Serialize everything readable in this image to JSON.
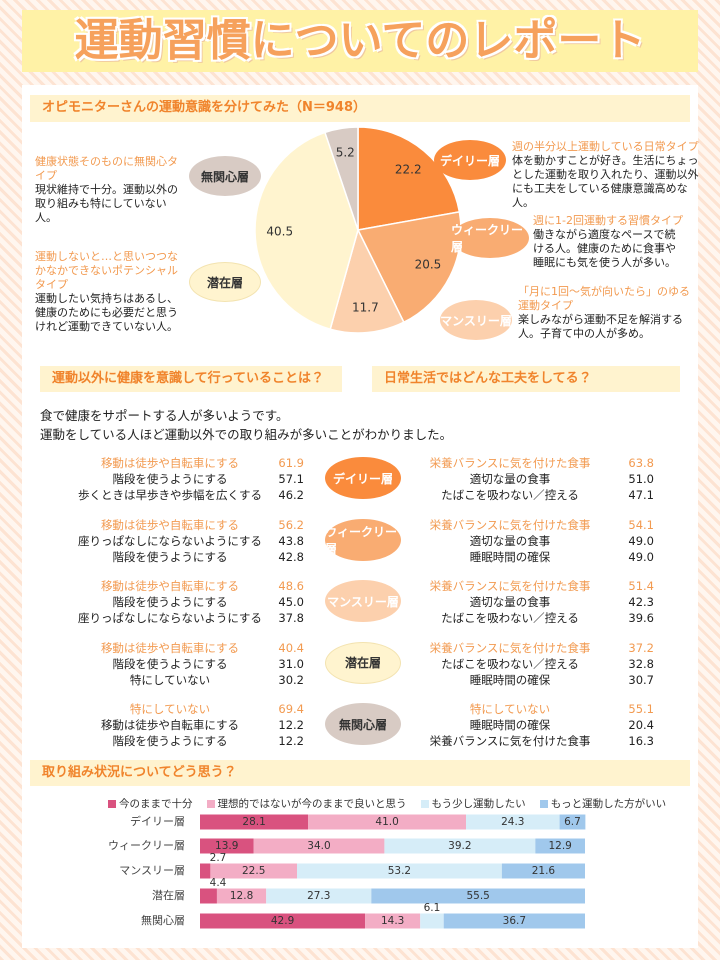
{
  "title": "運動習慣についてのレポート",
  "chart_data": [
    {
      "type": "pie",
      "title": "オピモニターさんの運動意識を分けてみた（N＝948）",
      "categories": [
        "デイリー層",
        "ウィークリー層",
        "マンスリー層",
        "潜在層",
        "無関心層"
      ],
      "values": [
        22.2,
        20.5,
        11.7,
        40.5,
        5.2
      ],
      "colors": [
        "#fa8b3c",
        "#f9ac72",
        "#fcd0ad",
        "#fff4cf",
        "#d8cbc4"
      ],
      "annotations": [
        {
          "heading": "週の半分以上運動している日常タイプ",
          "text": "体を動かすことが好き。生活にちょっとした運動を取り入れたり、運動以外にも工夫をしている健康意識高めな人。"
        },
        {
          "heading": "週に1-2回運動する習慣タイプ",
          "text": "働きながら適度なペースで続ける人。健康のために食事や睡眠にも気を使う人が多い。"
        },
        {
          "heading": "「月に1回〜気が向いたら」のゆる運動タイプ",
          "text": "楽しみながら運動不足を解消する人。子育て中の人が多め。"
        },
        {
          "heading": "運動しないと…と思いつつなかなかできないポテンシャルタイプ",
          "text": "運動したい気持ちはあるし、健康のためにも必要だと思うけれど運動できていない人。"
        },
        {
          "heading": "健康状態そのものに無関心タイプ",
          "text": "現状維持で十分。運動以外の取り組みも特にしていない人。"
        }
      ]
    },
    {
      "type": "stacked_bar",
      "title": "取り組み状況についてどう思う？",
      "categories": [
        "デイリー層",
        "ウィークリー層",
        "マンスリー層",
        "潜在層",
        "無関心層"
      ],
      "xlim": [
        0,
        100
      ],
      "series": [
        {
          "name": "今のままで十分",
          "color": "#d9527f",
          "values": [
            28.1,
            13.9,
            2.7,
            4.4,
            42.9
          ],
          "value_labels": [
            "28.1",
            "13.9",
            "2.7",
            "4.4",
            "42.9"
          ]
        },
        {
          "name": "理想的ではないが今のままで良いと思う",
          "color": "#f3adc5",
          "values": [
            41.0,
            34.0,
            22.5,
            12.8,
            14.3
          ],
          "value_labels": [
            "41.0",
            "34.0",
            "22.5",
            "12.8",
            "14.3"
          ]
        },
        {
          "name": "もう少し運動したい",
          "color": "#d6edf8",
          "values": [
            24.3,
            39.2,
            53.2,
            27.3,
            6.1
          ],
          "value_labels": [
            "24.3",
            "39.2",
            "53.2",
            "27.3",
            "6.1"
          ]
        },
        {
          "name": "もっと運動した方がいい",
          "color": "#a0c8ec",
          "values": [
            6.7,
            12.9,
            21.6,
            55.5,
            36.7
          ],
          "value_labels": [
            "6.7",
            "12.9",
            "21.6",
            "55.5",
            "36.7"
          ]
        }
      ]
    }
  ],
  "habits": {
    "left_title": "運動以外に健康を意識して行っていることは？",
    "right_title": "日常生活ではどんな工夫をしてる？",
    "intro": [
      "食で健康をサポートする人が多いようです。",
      "運動をしている人ほど運動以外での取り組みが多いことがわかりました。"
    ],
    "rows": [
      {
        "left": [
          {
            "label": "移動は徒歩や自転車にする",
            "value": "61.9"
          },
          {
            "label": "階段を使うようにする",
            "value": "57.1"
          },
          {
            "label": "歩くときは早歩きや歩幅を広くする",
            "value": "46.2"
          }
        ],
        "right": [
          {
            "label": "栄養バランスに気を付けた食事",
            "value": "63.8"
          },
          {
            "label": "適切な量の食事",
            "value": "51.0"
          },
          {
            "label": "たばこを吸わない／控える",
            "value": "47.1"
          }
        ]
      },
      {
        "left": [
          {
            "label": "移動は徒歩や自転車にする",
            "value": "56.2"
          },
          {
            "label": "座りっぱなしにならないようにする",
            "value": "43.8"
          },
          {
            "label": "階段を使うようにする",
            "value": "42.8"
          }
        ],
        "right": [
          {
            "label": "栄養バランスに気を付けた食事",
            "value": "54.1"
          },
          {
            "label": "適切な量の食事",
            "value": "49.0"
          },
          {
            "label": "睡眠時間の確保",
            "value": "49.0"
          }
        ]
      },
      {
        "left": [
          {
            "label": "移動は徒歩や自転車にする",
            "value": "48.6"
          },
          {
            "label": "階段を使うようにする",
            "value": "45.0"
          },
          {
            "label": "座りっぱなしにならないようにする",
            "value": "37.8"
          }
        ],
        "right": [
          {
            "label": "栄養バランスに気を付けた食事",
            "value": "51.4"
          },
          {
            "label": "適切な量の食事",
            "value": "42.3"
          },
          {
            "label": "たばこを吸わない／控える",
            "value": "39.6"
          }
        ]
      },
      {
        "left": [
          {
            "label": "移動は徒歩や自転車にする",
            "value": "40.4"
          },
          {
            "label": "階段を使うようにする",
            "value": "31.0"
          },
          {
            "label": "特にしていない",
            "value": "30.2"
          }
        ],
        "right": [
          {
            "label": "栄養バランスに気を付けた食事",
            "value": "37.2"
          },
          {
            "label": "たばこを吸わない／控える",
            "value": "32.8"
          },
          {
            "label": "睡眠時間の確保",
            "value": "30.7"
          }
        ]
      },
      {
        "left": [
          {
            "label": "特にしていない",
            "value": "69.4"
          },
          {
            "label": "移動は徒歩や自転車にする",
            "value": "12.2"
          },
          {
            "label": "階段を使うようにする",
            "value": "12.2"
          }
        ],
        "right": [
          {
            "label": "特にしていない",
            "value": "55.1"
          },
          {
            "label": "睡眠時間の確保",
            "value": "20.4"
          },
          {
            "label": "栄養バランスに気を付けた食事",
            "value": "16.3"
          }
        ]
      }
    ]
  }
}
